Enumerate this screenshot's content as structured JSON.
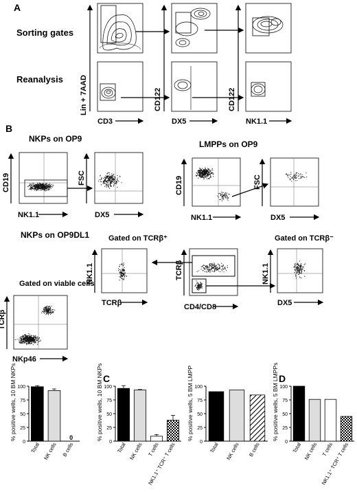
{
  "panel_labels": {
    "a": "A",
    "b": "B",
    "c": "C",
    "d": "D"
  },
  "section_a": {
    "row_labels": [
      "Sorting gates",
      "Reanalysis"
    ],
    "y_labels": [
      "Lin + 7AAD",
      "CD122",
      "CD122"
    ],
    "x_labels": [
      "CD3",
      "DX5",
      "NK1.1"
    ]
  },
  "section_b": {
    "titles": {
      "nkp_op9": "NKPs on OP9",
      "lmpp_op9": "LMPPs on OP9",
      "nkp_op9dl1": "NKPs on OP9DL1",
      "gated_viable": "Gated on viable cells",
      "gated_tcrb_pos": "Gated on  TCRβ⁺",
      "gated_tcrb_neg": "Gated on  TCRβ⁻"
    },
    "axes": {
      "cd19": "CD19",
      "nk11": "NK1.1",
      "fsc": "FSC",
      "dx5": "DX5",
      "tcrb": "TCRβ",
      "nkp46": "NKp46",
      "cd4cd8": "CD4/CD8"
    }
  },
  "chart_data": [
    {
      "type": "bar",
      "ylabel": "% positive wells, 10 BM NKPs",
      "ylim": [
        0,
        100
      ],
      "yticks": [
        0,
        25,
        50,
        75,
        100
      ],
      "categories": [
        "Total",
        "NK cells",
        "B cells"
      ],
      "values": [
        99,
        92,
        0
      ],
      "errors": [
        2,
        3,
        0
      ],
      "fills": [
        "#000000",
        "#dddddd",
        "#ffffff"
      ],
      "annotations": [
        "",
        "",
        "0"
      ]
    },
    {
      "type": "bar",
      "ylabel": "% positive wells, 10 BM NKPs",
      "ylim": [
        0,
        100
      ],
      "yticks": [
        0,
        25,
        50,
        75,
        100
      ],
      "categories": [
        "Total",
        "NK cells",
        "T cells",
        "NK1.1⁺ TCR⁺ T cells"
      ],
      "values": [
        96,
        93,
        9,
        38
      ],
      "errors": [
        5,
        1,
        3,
        9
      ],
      "fills": [
        "#000000",
        "#dddddd",
        "#ffffff",
        "check"
      ],
      "annotations": [
        "",
        "",
        "",
        ""
      ]
    },
    {
      "type": "bar",
      "ylabel": "% positive wells, 5 BM LMPP",
      "ylim": [
        0,
        100
      ],
      "yticks": [
        0,
        25,
        50,
        75,
        100
      ],
      "categories": [
        "Total",
        "NK cells",
        "B cells"
      ],
      "values": [
        90,
        93,
        84
      ],
      "errors": [
        0,
        0,
        0
      ],
      "fills": [
        "#000000",
        "#dddddd",
        "hatch"
      ],
      "annotations": [
        "",
        "",
        ""
      ]
    },
    {
      "type": "bar",
      "ylabel": "% positive wells, 5 BM LMPPs",
      "ylim": [
        0,
        100
      ],
      "yticks": [
        0,
        25,
        50,
        75,
        100
      ],
      "categories": [
        "Total",
        "NK cells",
        "T cells",
        "NK1.1⁺ TCR⁺ T cells"
      ],
      "values": [
        100,
        76,
        76,
        45
      ],
      "errors": [
        0,
        0,
        0,
        0
      ],
      "fills": [
        "#000000",
        "#dddddd",
        "#ffffff",
        "check"
      ],
      "annotations": [
        "",
        "",
        "",
        ""
      ]
    }
  ]
}
